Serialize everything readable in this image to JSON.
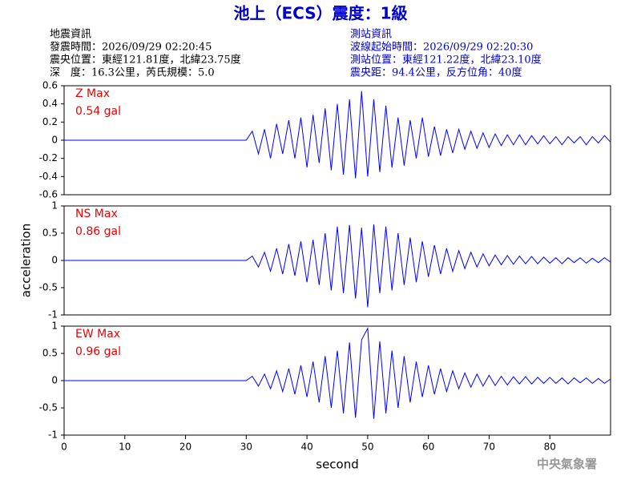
{
  "header": {
    "title": "池上（ECS）震度：1級",
    "left": [
      "地震資訊",
      "發震時間：2026/09/29 02:20:45",
      "震央位置：東經121.81度，北緯23.75度",
      "深　度：16.3公里，芮氏規模：5.0"
    ],
    "right": [
      "測站資訊",
      "波線起始時間：2026/09/29 02:20:30",
      "測站位置：東經121.22度，北緯23.10度",
      "震央距：94.4公里，反方位角：40度"
    ],
    "footer": "中央氣象署"
  },
  "chart_data": [
    {
      "type": "line",
      "annotations": [
        "Z Max",
        "0.54 gal"
      ],
      "color": "#0000ff",
      "xlim": [
        0,
        90
      ],
      "ylim": [
        -0.6,
        0.6
      ],
      "yticks": [
        -0.6,
        -0.4,
        -0.2,
        0,
        0.2,
        0.4,
        0.6
      ],
      "x": [
        0,
        10,
        20,
        30,
        31,
        32,
        33,
        34,
        35,
        36,
        37,
        38,
        39,
        40,
        41,
        42,
        43,
        44,
        45,
        46,
        47,
        48,
        49,
        50,
        51,
        52,
        53,
        54,
        55,
        56,
        57,
        58,
        59,
        60,
        61,
        62,
        63,
        64,
        65,
        66,
        67,
        68,
        69,
        70,
        71,
        72,
        73,
        74,
        75,
        76,
        77,
        78,
        79,
        80,
        81,
        82,
        83,
        84,
        85,
        86,
        87,
        88,
        89,
        90
      ],
      "values": [
        0,
        0,
        0,
        0,
        0.1,
        -0.15,
        0.12,
        -0.2,
        0.18,
        -0.15,
        0.22,
        -0.2,
        0.25,
        -0.3,
        0.28,
        -0.25,
        0.35,
        -0.33,
        0.4,
        -0.38,
        0.45,
        -0.42,
        0.54,
        -0.4,
        0.45,
        -0.35,
        0.38,
        -0.3,
        0.25,
        -0.28,
        0.22,
        -0.2,
        0.25,
        -0.18,
        0.15,
        -0.17,
        0.12,
        -0.14,
        0.12,
        -0.1,
        0.1,
        -0.09,
        0.08,
        -0.08,
        0.07,
        -0.06,
        0.06,
        -0.05,
        0.06,
        -0.05,
        0.05,
        -0.04,
        0.05,
        -0.04,
        0.04,
        -0.05,
        0.04,
        -0.03,
        0.04,
        -0.05,
        0.04,
        -0.03,
        0.05,
        -0.02
      ]
    },
    {
      "type": "line",
      "annotations": [
        "NS Max",
        "0.86 gal"
      ],
      "ylabel": "acceleration",
      "color": "#0000ff",
      "xlim": [
        0,
        90
      ],
      "ylim": [
        -1,
        1
      ],
      "yticks": [
        -1,
        -0.5,
        0,
        0.5,
        1
      ],
      "x": [
        0,
        10,
        20,
        30,
        31,
        32,
        33,
        34,
        35,
        36,
        37,
        38,
        39,
        40,
        41,
        42,
        43,
        44,
        45,
        46,
        47,
        48,
        49,
        50,
        51,
        52,
        53,
        54,
        55,
        56,
        57,
        58,
        59,
        60,
        61,
        62,
        63,
        64,
        65,
        66,
        67,
        68,
        69,
        70,
        71,
        72,
        73,
        74,
        75,
        76,
        77,
        78,
        79,
        80,
        81,
        82,
        83,
        84,
        85,
        86,
        87,
        88,
        89,
        90
      ],
      "values": [
        0,
        0,
        0,
        0,
        0.08,
        -0.12,
        0.15,
        -0.2,
        0.22,
        -0.25,
        0.3,
        -0.28,
        0.35,
        -0.4,
        0.38,
        -0.45,
        0.5,
        -0.55,
        0.62,
        -0.6,
        0.65,
        -0.7,
        0.6,
        -0.86,
        0.66,
        -0.6,
        0.62,
        -0.55,
        0.5,
        -0.45,
        0.42,
        -0.4,
        0.35,
        -0.3,
        0.28,
        -0.25,
        0.22,
        -0.2,
        0.18,
        -0.15,
        0.15,
        -0.12,
        0.12,
        -0.1,
        0.1,
        -0.08,
        0.09,
        -0.07,
        0.08,
        -0.06,
        0.07,
        -0.06,
        0.06,
        -0.05,
        0.05,
        -0.06,
        0.05,
        -0.04,
        0.05,
        -0.05,
        0.04,
        -0.04,
        0.05,
        -0.03
      ]
    },
    {
      "type": "line",
      "annotations": [
        "EW Max",
        "0.96 gal"
      ],
      "xlabel": "second",
      "color": "#0000ff",
      "xlim": [
        0,
        90
      ],
      "ylim": [
        -1,
        1
      ],
      "yticks": [
        -1,
        -0.5,
        0,
        0.5,
        1
      ],
      "xticks": [
        0,
        10,
        20,
        30,
        40,
        50,
        60,
        70,
        80
      ],
      "x": [
        0,
        10,
        20,
        30,
        31,
        32,
        33,
        34,
        35,
        36,
        37,
        38,
        39,
        40,
        41,
        42,
        43,
        44,
        45,
        46,
        47,
        48,
        49,
        50,
        51,
        52,
        53,
        54,
        55,
        56,
        57,
        58,
        59,
        60,
        61,
        62,
        63,
        64,
        65,
        66,
        67,
        68,
        69,
        70,
        71,
        72,
        73,
        74,
        75,
        76,
        77,
        78,
        79,
        80,
        81,
        82,
        83,
        84,
        85,
        86,
        87,
        88,
        89,
        90
      ],
      "values": [
        0,
        0,
        0,
        0,
        0.08,
        -0.1,
        0.12,
        -0.15,
        0.18,
        -0.2,
        0.22,
        -0.25,
        0.28,
        -0.3,
        0.35,
        -0.4,
        0.45,
        -0.5,
        0.55,
        -0.6,
        0.7,
        -0.68,
        0.75,
        0.96,
        -0.7,
        0.72,
        -0.6,
        0.55,
        -0.5,
        0.45,
        -0.4,
        0.35,
        -0.3,
        0.28,
        -0.25,
        0.22,
        -0.2,
        0.18,
        -0.15,
        0.14,
        -0.12,
        0.12,
        -0.1,
        0.1,
        -0.09,
        0.08,
        -0.08,
        0.07,
        -0.06,
        0.07,
        -0.06,
        0.06,
        -0.05,
        0.06,
        -0.05,
        0.05,
        -0.06,
        0.05,
        -0.04,
        0.05,
        -0.05,
        0.04,
        -0.05,
        0.03
      ]
    }
  ]
}
